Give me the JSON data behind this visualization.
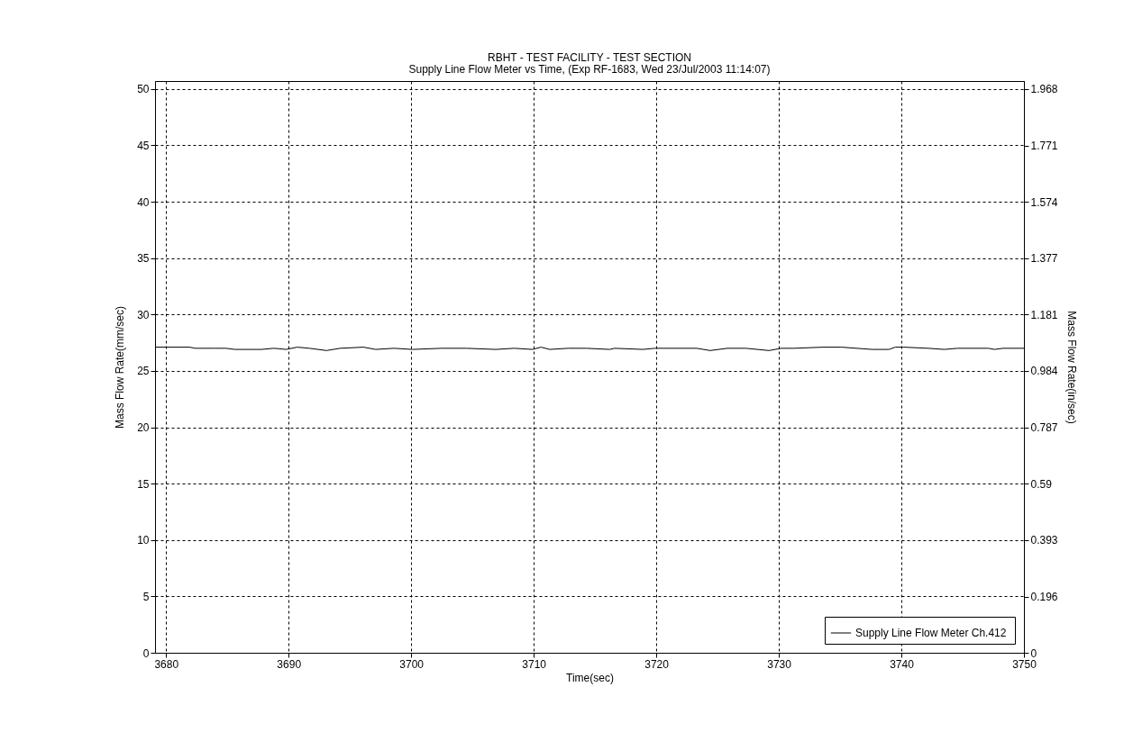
{
  "chart_data": {
    "type": "line",
    "title": "RBHT - TEST FACILITY - TEST SECTION",
    "subtitle": "Supply Line Flow Meter vs Time, (Exp RF-1683, Wed 23/Jul/2003 11:14:07)",
    "xlabel": "Time(sec)",
    "ylabel": "Mass Flow Rate(mm/sec)",
    "y2label": "Mass Flow Rate(in/sec)",
    "xlim": [
      3679.1,
      3750
    ],
    "xticks": [
      3680,
      3690,
      3700,
      3710,
      3720,
      3730,
      3740,
      3750
    ],
    "ylim": [
      0,
      50.7
    ],
    "yticks": [
      0,
      5,
      10,
      15,
      20,
      25,
      30,
      35,
      40,
      45,
      50
    ],
    "y2lim": [
      0,
      1.996
    ],
    "y2ticks": [
      0,
      0.196,
      0.393,
      0.59,
      0.787,
      0.984,
      1.181,
      1.377,
      1.574,
      1.771,
      1.968
    ],
    "grid": true,
    "legend": "bottom right",
    "line_style": "solid",
    "marker": "none",
    "series": [
      {
        "name": "Supply Line Flow Meter  Ch.412",
        "color": "#000000",
        "x": [
          3679.1,
          3681.9,
          3682.4,
          3683.9,
          3684.9,
          3685.6,
          3687.8,
          3688.8,
          3689.8,
          3690.7,
          3691.7,
          3693.1,
          3694.2,
          3696.1,
          3697.1,
          3698.6,
          3700.1,
          3702.5,
          3704.5,
          3706.9,
          3708.4,
          3709.9,
          3710.6,
          3711.3,
          3712.8,
          3714.3,
          3716.2,
          3716.6,
          3718.9,
          3719.9,
          3721.4,
          3723.3,
          3724.4,
          3725.8,
          3727.3,
          3729.2,
          3730.2,
          3731.2,
          3733.6,
          3735.1,
          3737.6,
          3739.0,
          3739.5,
          3740.2,
          3742.2,
          3743.5,
          3744.6,
          3747.1,
          3747.6,
          3748.3,
          3750
        ],
        "values": [
          27.1,
          27.1,
          27.0,
          27.0,
          27.0,
          26.9,
          26.9,
          27.0,
          26.9,
          27.1,
          27.0,
          26.8,
          27.0,
          27.1,
          26.9,
          27.0,
          26.9,
          27.0,
          27.0,
          26.9,
          27.0,
          26.9,
          27.1,
          26.9,
          27.0,
          27.0,
          26.9,
          27.0,
          26.9,
          27.0,
          27.0,
          27.0,
          26.8,
          27.0,
          27.0,
          26.8,
          27.0,
          27.0,
          27.1,
          27.1,
          26.9,
          26.9,
          27.1,
          27.1,
          27.0,
          26.9,
          27.0,
          27.0,
          26.9,
          27.0,
          27.0
        ]
      }
    ]
  }
}
